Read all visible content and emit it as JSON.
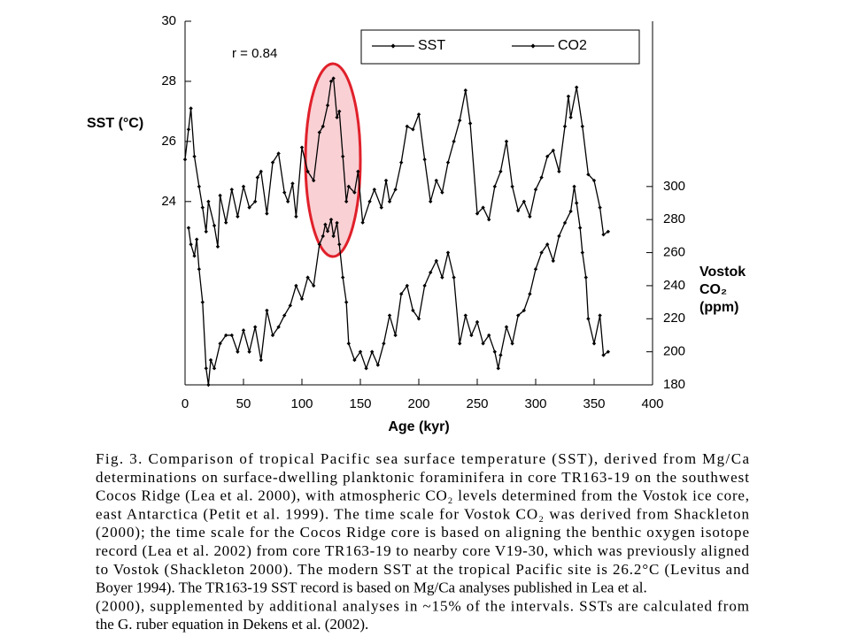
{
  "chart_data": {
    "type": "line",
    "x_label": "Age (kyr)",
    "y_label": "SST (°C)",
    "y2_label": [
      "Vostok",
      "CO₂",
      "(ppm)"
    ],
    "annotation": "r = 0.84",
    "legend": "top-right",
    "xlim": [
      0,
      400
    ],
    "xticks": [
      0,
      50,
      100,
      150,
      200,
      250,
      300,
      350,
      400
    ],
    "ylim": [
      17.9,
      30
    ],
    "yticks": [
      24,
      26,
      28,
      30
    ],
    "y2lim": [
      180,
      400
    ],
    "y2ticks": [
      180,
      200,
      220,
      240,
      260,
      280,
      300
    ],
    "series": [
      {
        "name": "SST",
        "color": "#000000",
        "x": [
          0,
          3,
          5,
          8,
          12,
          15,
          18,
          20,
          25,
          28,
          30,
          35,
          40,
          45,
          50,
          55,
          60,
          62,
          65,
          70,
          75,
          80,
          85,
          88,
          92,
          95,
          100,
          105,
          110,
          115,
          118,
          122,
          125,
          127,
          130,
          132,
          135,
          138,
          140,
          145,
          148,
          152,
          158,
          162,
          168,
          172,
          175,
          180,
          185,
          190,
          195,
          200,
          205,
          210,
          215,
          220,
          225,
          230,
          235,
          240,
          244,
          250,
          255,
          260,
          265,
          270,
          275,
          280,
          285,
          290,
          295,
          300,
          305,
          310,
          315,
          320,
          325,
          328,
          330,
          335,
          340,
          345,
          350,
          355,
          358,
          362
        ],
        "values": [
          25.4,
          26.4,
          27.1,
          25.5,
          24.5,
          23.8,
          23.0,
          24.0,
          23.2,
          22.5,
          24.2,
          23.3,
          24.4,
          23.5,
          24.5,
          23.8,
          24.0,
          24.8,
          25.0,
          23.6,
          25.3,
          25.6,
          24.3,
          24.0,
          24.6,
          23.5,
          25.8,
          25.0,
          24.7,
          26.3,
          26.5,
          27.2,
          28.0,
          28.1,
          26.8,
          27.0,
          25.5,
          24.0,
          24.5,
          24.3,
          25.0,
          23.3,
          24.0,
          24.4,
          23.8,
          24.7,
          24.0,
          24.4,
          25.3,
          26.5,
          26.4,
          26.9,
          25.4,
          24.0,
          24.7,
          24.3,
          25.3,
          26.0,
          26.7,
          27.7,
          26.6,
          23.6,
          23.8,
          23.4,
          24.5,
          25.0,
          26.0,
          24.5,
          23.7,
          24.0,
          23.5,
          24.4,
          24.8,
          25.5,
          25.7,
          25.0,
          26.5,
          27.5,
          26.8,
          27.8,
          26.5,
          24.9,
          24.7,
          23.8,
          22.9,
          23.0
        ]
      },
      {
        "name": "CO2",
        "color": "#000000",
        "axis": "y2",
        "x": [
          3,
          5,
          8,
          10,
          12,
          15,
          18,
          20,
          22,
          25,
          30,
          35,
          40,
          45,
          50,
          55,
          60,
          65,
          70,
          75,
          80,
          85,
          90,
          95,
          100,
          105,
          110,
          115,
          118,
          120,
          122,
          125,
          127,
          130,
          132,
          135,
          138,
          140,
          145,
          150,
          155,
          160,
          165,
          170,
          175,
          180,
          185,
          190,
          195,
          200,
          205,
          210,
          215,
          220,
          225,
          230,
          235,
          240,
          245,
          250,
          255,
          260,
          265,
          268,
          270,
          275,
          280,
          285,
          290,
          295,
          300,
          305,
          310,
          315,
          320,
          325,
          330,
          333,
          335,
          338,
          340,
          343,
          345,
          350,
          355,
          358,
          362
        ],
        "values": [
          275,
          265,
          258,
          268,
          250,
          230,
          190,
          180,
          195,
          190,
          205,
          210,
          210,
          200,
          213,
          200,
          215,
          195,
          225,
          210,
          215,
          222,
          228,
          240,
          232,
          245,
          240,
          265,
          270,
          277,
          273,
          280,
          270,
          278,
          265,
          245,
          230,
          205,
          195,
          200,
          190,
          200,
          192,
          205,
          222,
          210,
          235,
          240,
          225,
          220,
          240,
          248,
          255,
          245,
          260,
          245,
          205,
          222,
          210,
          218,
          205,
          210,
          200,
          190,
          198,
          215,
          205,
          222,
          225,
          235,
          250,
          260,
          265,
          255,
          270,
          278,
          285,
          300,
          290,
          275,
          260,
          245,
          220,
          205,
          222,
          198,
          200
        ]
      }
    ]
  },
  "caption": {
    "lines": [
      "Fig. 3. Comparison of tropical Pacific sea surface temperature (SST), derived from Mg/Ca",
      "determinations on surface-dwelling planktonic foraminifera in core TR163-19 on the southwest",
      "Cocos Ridge (Lea et al. 2000), with atmospheric CO₂ levels determined from the Vostok ice core,",
      "east Antarctica (Petit et al. 1999). The time scale for Vostok CO₂ was derived from Shackleton",
      "(2000); the time scale for the Cocos Ridge core is based on aligning the benthic oxygen isotope",
      "record (Lea et al. 2002) from core TR163-19 to nearby core V19-30, which was previously aligned",
      "to Vostok (Shackleton 2000). The modern SST at the tropical Pacific site is 26.2°C (Levitus and",
      "Boyer 1994). The TR163-19 SST record is based on Mg/Ca analyses published in Lea et al.",
      "(2000), supplemented by additional analyses in ~15% of the intervals. SSTs are calculated from",
      "the G. ruber equation in Dekens et al. (2002)."
    ]
  }
}
